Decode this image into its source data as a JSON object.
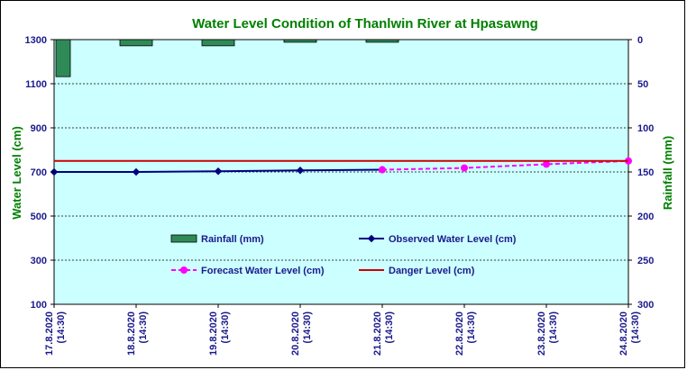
{
  "chart_data": {
    "type": "line",
    "title": "Water Level Condition of Thanlwin River at  Hpasawng",
    "ylabel": "Water Level (cm)",
    "y2label": "Rainfall (mm)",
    "ylim": [
      100,
      1300
    ],
    "yticks": [
      100,
      300,
      500,
      700,
      900,
      1100,
      1300
    ],
    "y2lim": [
      0,
      300
    ],
    "y2ticks": [
      0,
      50,
      100,
      150,
      200,
      250,
      300
    ],
    "y2_reversed": true,
    "grid": true,
    "legend_position": "center",
    "categories": [
      "17.8.2020",
      "18.8.2020",
      "19.8.2020",
      "20.8.2020",
      "21.8.2020",
      "22.8.2020",
      "23.8.2020",
      "24.8.2020"
    ],
    "category_sublabel": "(14:30)",
    "series": [
      {
        "name": "Rainfall (mm)",
        "kind": "bar",
        "axis": "right",
        "color": "#2e8b57",
        "values": [
          42,
          7,
          7,
          3,
          3,
          null,
          null,
          null
        ]
      },
      {
        "name": "Observed Water Level (cm)",
        "kind": "line",
        "axis": "left",
        "color": "#000080",
        "values": [
          700,
          700,
          703,
          707,
          710,
          null,
          null,
          null
        ]
      },
      {
        "name": "Forecast Water Level (cm)",
        "kind": "dashed-line",
        "axis": "left",
        "color": "#ff00ff",
        "values": [
          null,
          null,
          null,
          null,
          710,
          718,
          735,
          750
        ]
      },
      {
        "name": "Danger Level (cm)",
        "kind": "line",
        "axis": "left",
        "color": "#cc0000",
        "values": [
          750,
          750,
          750,
          750,
          750,
          750,
          750,
          750
        ]
      }
    ],
    "colors": {
      "plot_background": "#ccffff",
      "title": "#008000",
      "axis_text": "#1a1a8c",
      "grid": "#000000"
    }
  }
}
